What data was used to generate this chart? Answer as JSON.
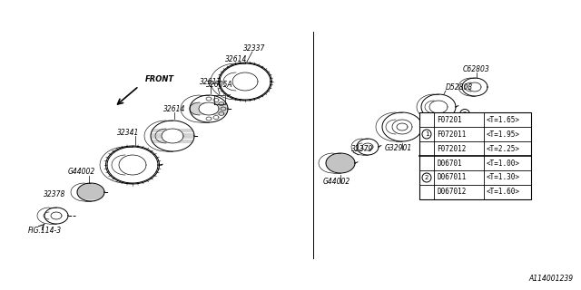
{
  "bg_color": "#ffffff",
  "line_color": "#000000",
  "table": {
    "rows": [
      {
        "circle": null,
        "part": "F07201",
        "thickness": "<T=1.65>"
      },
      {
        "circle": "1",
        "part": "F072011",
        "thickness": "<T=1.95>"
      },
      {
        "circle": null,
        "part": "F072012",
        "thickness": "<T=2.25>"
      },
      {
        "circle": null,
        "part": "D06701",
        "thickness": "<T=1.00>"
      },
      {
        "circle": "2",
        "part": "D067011",
        "thickness": "<T=1.30>"
      },
      {
        "circle": null,
        "part": "D067012",
        "thickness": "<T=1.60>"
      }
    ]
  },
  "fig_label": "FIG.114-3",
  "diagram_id": "A114001239"
}
